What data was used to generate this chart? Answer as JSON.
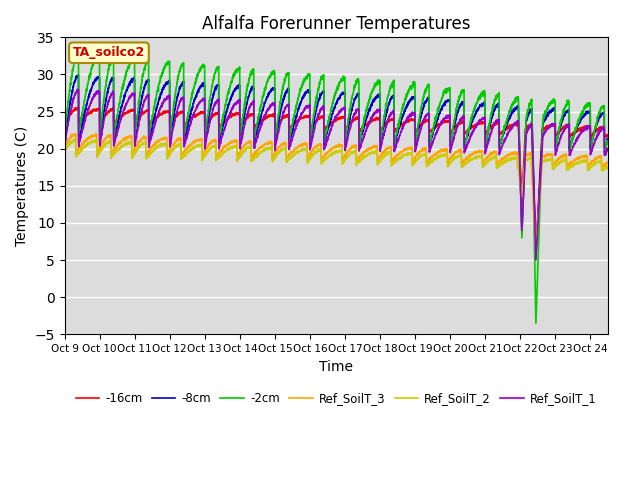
{
  "title": "Alfalfa Forerunner Temperatures",
  "xlabel": "Time",
  "ylabel": "Temperatures (C)",
  "annotation": "TA_soilco2",
  "ylim": [
    -5,
    35
  ],
  "yticks": [
    -5,
    0,
    5,
    10,
    15,
    20,
    25,
    30,
    35
  ],
  "bg_color": "#dcdcdc",
  "legend": [
    "-16cm",
    "-8cm",
    "-2cm",
    "Ref_SoilT_3",
    "Ref_SoilT_2",
    "Ref_SoilT_1"
  ],
  "line_colors": [
    "#ff0000",
    "#0000cc",
    "#00cc00",
    "#ffa500",
    "#cccc00",
    "#9900cc"
  ],
  "xtick_labels": [
    "Oct 9",
    "Oct 10",
    "Oct 11",
    "Oct 12",
    "Oct 13",
    "Oct 14",
    "Oct 15",
    "Oct 16",
    "Oct 17",
    "Oct 18",
    "Oct 19",
    "Oct 20",
    "Oct 21",
    "Oct 22",
    "Oct 23",
    "Oct 24"
  ],
  "n_days": 15.5,
  "n_points": 3100
}
